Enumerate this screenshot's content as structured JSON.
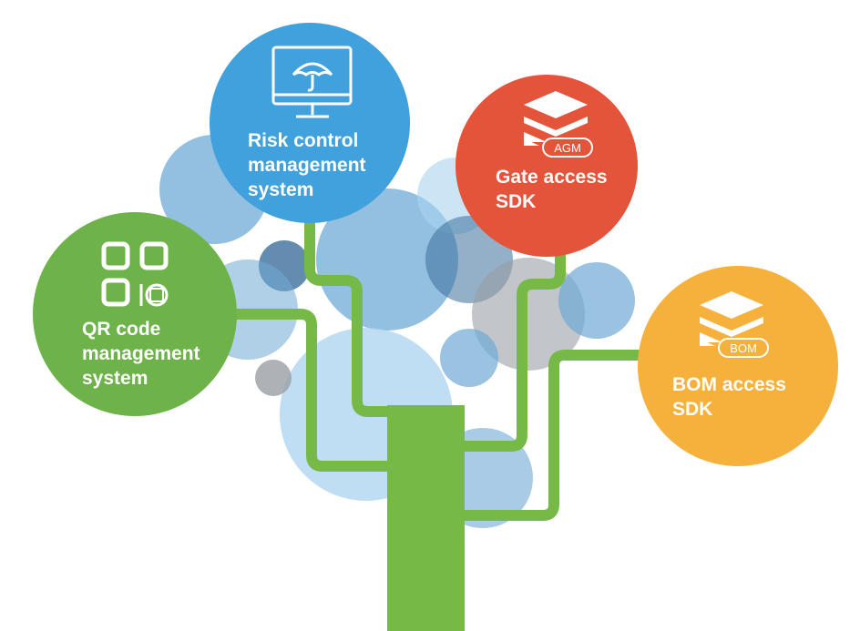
{
  "colors": {
    "trunk": "#76b947",
    "risk_node": "#41a1dc",
    "gate_node": "#e4543a",
    "qr_node": "#6db34a",
    "bom_node": "#f5b13b",
    "bubble_blue": "#6fa9d6",
    "bubble_light": "#a9d3ef",
    "bubble_dark": "#3d6f9c",
    "bubble_gray": "#9a9fa5"
  },
  "nodes": {
    "risk": {
      "label": "Risk control\nmanagement\nsystem",
      "icon": "monitor-umbrella-icon"
    },
    "gate": {
      "label": "Gate access\nSDK",
      "icon": "layers-agm-icon",
      "badge": "AGM"
    },
    "qr": {
      "label": "QR code\nmanagement\nsystem",
      "icon": "qr-code-icon"
    },
    "bom": {
      "label": "BOM access\nSDK",
      "icon": "layers-bom-icon",
      "badge": "BOM"
    }
  }
}
